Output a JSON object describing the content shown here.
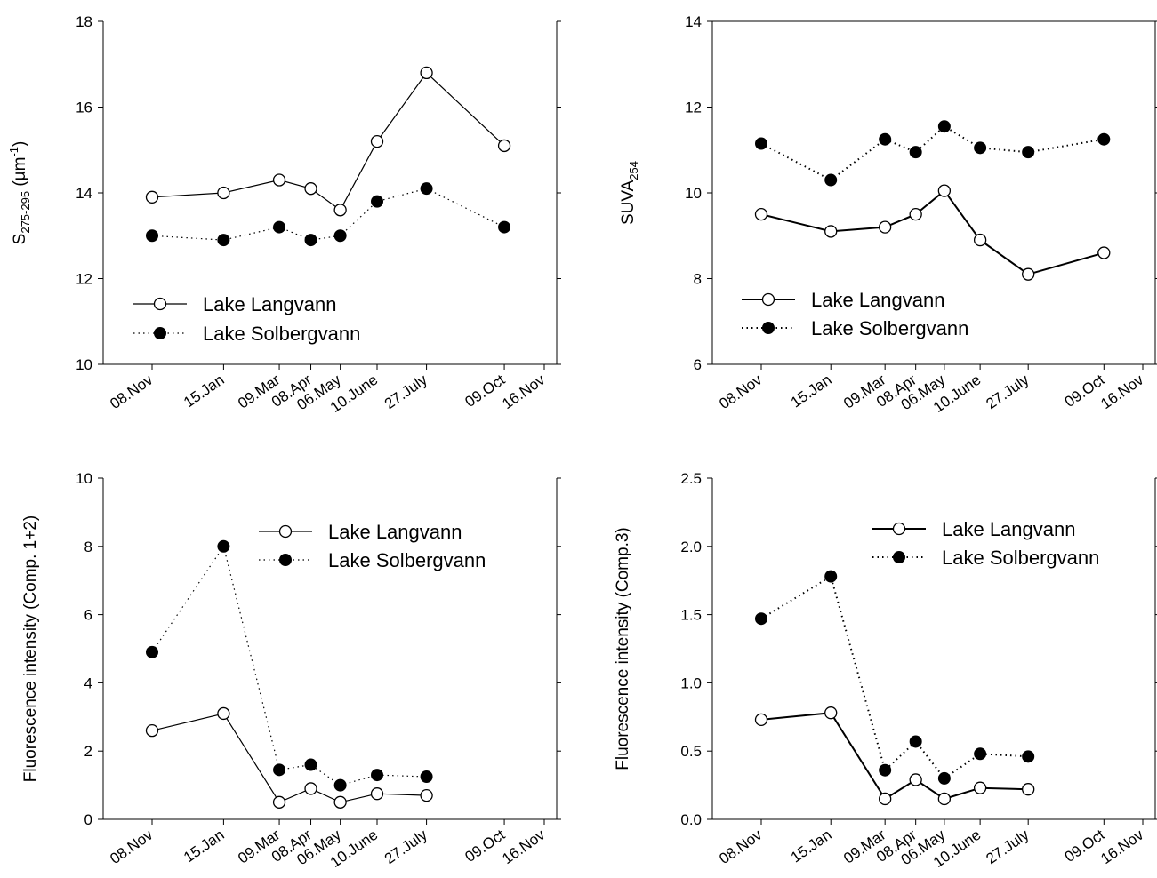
{
  "chart_data": [
    {
      "type": "line",
      "panel": "top-left",
      "ylabel": "S275-295 (µm-1)",
      "ylim": [
        10,
        18
      ],
      "yticks": [
        10,
        12,
        14,
        16,
        18
      ],
      "ytick_labels": [
        "10",
        "12",
        "14",
        "16",
        "18"
      ],
      "xlim": [
        0,
        373
      ],
      "xticks": [
        0,
        68,
        121,
        151,
        179,
        214,
        261,
        335,
        373
      ],
      "xtick_labels": [
        "08.Nov",
        "15.Jan",
        "09.Mar",
        "08.Apr",
        "06.May",
        "10.June",
        "27.July",
        "09.Oct",
        "16.Nov"
      ],
      "legend_position": "lower-left",
      "series": [
        {
          "name": "Lake Langvann",
          "marker": "open-circle",
          "linestyle": "solid",
          "x": [
            "08.Nov",
            "15.Jan",
            "09.Mar",
            "08.Apr",
            "06.May",
            "10.June",
            "27.July",
            "09.Oct"
          ],
          "y": [
            13.9,
            14.0,
            14.3,
            14.1,
            13.6,
            15.2,
            16.8,
            15.1
          ]
        },
        {
          "name": "Lake Solbergvann",
          "marker": "filled-circle",
          "linestyle": "dotted",
          "x": [
            "08.Nov",
            "15.Jan",
            "09.Mar",
            "08.Apr",
            "06.May",
            "10.June",
            "27.July",
            "09.Oct"
          ],
          "y": [
            13.0,
            12.9,
            13.2,
            12.9,
            13.0,
            13.8,
            14.1,
            13.2
          ]
        }
      ]
    },
    {
      "type": "line",
      "panel": "top-right",
      "ylabel": "SUVA254",
      "ylim": [
        6,
        14
      ],
      "yticks": [
        6,
        8,
        10,
        12,
        14
      ],
      "ytick_labels": [
        "6",
        "8",
        "10",
        "12",
        "14"
      ],
      "xlim": [
        0,
        373
      ],
      "xticks": [
        0,
        68,
        121,
        151,
        179,
        214,
        261,
        335,
        373
      ],
      "xtick_labels": [
        "08.Nov",
        "15.Jan",
        "09.Mar",
        "08.Apr",
        "06.May",
        "10.June",
        "27.July",
        "09.Oct",
        "16.Nov"
      ],
      "legend_position": "lower-left",
      "series": [
        {
          "name": "Lake Langvann",
          "marker": "open-circle",
          "linestyle": "solid",
          "x": [
            "08.Nov",
            "15.Jan",
            "09.Mar",
            "08.Apr",
            "06.May",
            "10.June",
            "27.July",
            "09.Oct"
          ],
          "y": [
            9.5,
            9.1,
            9.2,
            9.5,
            10.05,
            8.9,
            8.1,
            8.6
          ]
        },
        {
          "name": "Lake Solbergvann",
          "marker": "filled-circle",
          "linestyle": "dotted",
          "x": [
            "08.Nov",
            "15.Jan",
            "09.Mar",
            "08.Apr",
            "06.May",
            "10.June",
            "27.July",
            "09.Oct"
          ],
          "y": [
            11.15,
            10.3,
            11.25,
            10.95,
            11.55,
            11.05,
            10.95,
            11.25
          ]
        }
      ]
    },
    {
      "type": "line",
      "panel": "bottom-left",
      "ylabel": "Fluorescence intensity (Comp. 1+2)",
      "ylim": [
        0,
        10
      ],
      "yticks": [
        0,
        2,
        4,
        6,
        8,
        10
      ],
      "ytick_labels": [
        "0",
        "2",
        "4",
        "6",
        "8",
        "10"
      ],
      "xlim": [
        0,
        373
      ],
      "xticks": [
        0,
        68,
        121,
        151,
        179,
        214,
        261,
        335,
        373
      ],
      "xtick_labels": [
        "08.Nov",
        "15.Jan",
        "09.Mar",
        "08.Apr",
        "06.May",
        "10.June",
        "27.July",
        "09.Oct",
        "16.Nov"
      ],
      "legend_position": "top-right",
      "series": [
        {
          "name": "Lake Langvann",
          "marker": "open-circle",
          "linestyle": "solid",
          "x": [
            "08.Nov",
            "15.Jan",
            "09.Mar",
            "08.Apr",
            "06.May",
            "10.June",
            "27.July"
          ],
          "y": [
            2.6,
            3.1,
            0.5,
            0.9,
            0.5,
            0.75,
            0.7
          ]
        },
        {
          "name": "Lake Solbergvann",
          "marker": "filled-circle",
          "linestyle": "dotted",
          "x": [
            "08.Nov",
            "15.Jan",
            "09.Mar",
            "08.Apr",
            "06.May",
            "10.June",
            "27.July"
          ],
          "y": [
            4.9,
            8.0,
            1.45,
            1.6,
            1.0,
            1.3,
            1.25
          ]
        }
      ]
    },
    {
      "type": "line",
      "panel": "bottom-right",
      "ylabel": "Fluorescence intensity (Comp.3)",
      "ylim": [
        0,
        2.5
      ],
      "yticks": [
        0,
        0.5,
        1.0,
        1.5,
        2.0,
        2.5
      ],
      "ytick_labels": [
        "0.0",
        "0.5",
        "1.0",
        "1.5",
        "2.0",
        "2.5"
      ],
      "xlim": [
        0,
        373
      ],
      "xticks": [
        0,
        68,
        121,
        151,
        179,
        214,
        261,
        335,
        373
      ],
      "xtick_labels": [
        "08.Nov",
        "15.Jan",
        "09.Mar",
        "08.Apr",
        "06.May",
        "10.June",
        "27.July",
        "09.Oct",
        "16.Nov"
      ],
      "legend_position": "top-right",
      "series": [
        {
          "name": "Lake Langvann",
          "marker": "open-circle",
          "linestyle": "solid",
          "x": [
            "08.Nov",
            "15.Jan",
            "09.Mar",
            "08.Apr",
            "06.May",
            "10.June",
            "27.July"
          ],
          "y": [
            0.73,
            0.78,
            0.15,
            0.29,
            0.15,
            0.23,
            0.22
          ]
        },
        {
          "name": "Lake Solbergvann",
          "marker": "filled-circle",
          "linestyle": "dotted",
          "x": [
            "08.Nov",
            "15.Jan",
            "09.Mar",
            "08.Apr",
            "06.May",
            "10.June",
            "27.July"
          ],
          "y": [
            1.47,
            1.78,
            0.36,
            0.57,
            0.3,
            0.48,
            0.46
          ]
        }
      ]
    }
  ]
}
